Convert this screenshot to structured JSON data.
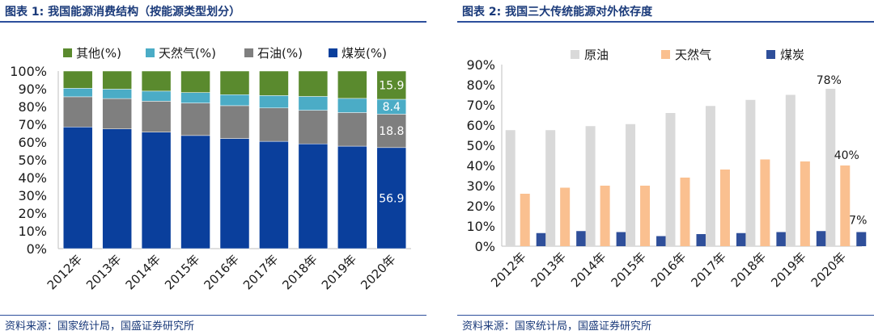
{
  "chart_data": [
    {
      "type": "bar",
      "stacked": true,
      "title": "图表 1:  我国能源消费结构（按能源类型划分）",
      "source": "资料来源：国家统计局，国盛证券研究所",
      "categories": [
        "2012年",
        "2013年",
        "2014年",
        "2015年",
        "2016年",
        "2017年",
        "2018年",
        "2019年",
        "2020年"
      ],
      "series": [
        {
          "name": "煤炭(%)",
          "color": "#0a3f9c",
          "values": [
            68.5,
            67.4,
            65.6,
            63.7,
            62.0,
            60.4,
            59.0,
            57.7,
            56.9
          ]
        },
        {
          "name": "石油(%)",
          "color": "#7f7f7f",
          "values": [
            17.0,
            17.1,
            17.4,
            18.3,
            18.5,
            18.8,
            18.9,
            18.9,
            18.8
          ]
        },
        {
          "name": "天然气(%)",
          "color": "#4bacc6",
          "values": [
            4.8,
            5.3,
            5.7,
            5.9,
            6.2,
            7.0,
            7.8,
            8.0,
            8.4
          ]
        },
        {
          "name": "其他(%)",
          "color": "#5a8a2e",
          "values": [
            9.7,
            10.2,
            11.3,
            12.1,
            13.3,
            13.8,
            14.3,
            15.4,
            15.9
          ]
        }
      ],
      "legend_order": [
        "其他(%)",
        "天然气(%)",
        "石油(%)",
        "煤炭(%)"
      ],
      "labels": {
        "other": "15.9",
        "gas": "8.4",
        "oil": "18.8",
        "coal": "56.9"
      },
      "ylim": [
        0,
        100
      ],
      "yticks": [
        "0%",
        "10%",
        "20%",
        "30%",
        "40%",
        "50%",
        "60%",
        "70%",
        "80%",
        "90%",
        "100%"
      ],
      "legend_position": "top"
    },
    {
      "type": "bar",
      "stacked": false,
      "title": "图表 2:  我国三大传统能源对外依存度",
      "source": "资料来源：国家统计局，国盛证券研究所",
      "categories": [
        "2012年",
        "2013年",
        "2014年",
        "2015年",
        "2016年",
        "2017年",
        "2018年",
        "2019年",
        "2020年"
      ],
      "series": [
        {
          "name": "原油",
          "color": "#d9d9d9",
          "values": [
            57.5,
            57.5,
            59.5,
            60.5,
            66,
            69.5,
            72.5,
            75,
            78
          ]
        },
        {
          "name": "天然气",
          "color": "#fac090",
          "values": [
            26,
            29,
            30,
            30,
            34,
            38,
            43,
            42,
            40
          ]
        },
        {
          "name": "煤炭",
          "color": "#2f4f9a",
          "values": [
            6.5,
            7.5,
            7,
            5,
            6,
            6.5,
            7,
            7.5,
            7
          ]
        }
      ],
      "labels": {
        "oil": "78%",
        "gas": "40%",
        "coal": "7%"
      },
      "ylim": [
        0,
        90
      ],
      "yticks": [
        "0%",
        "10%",
        "20%",
        "30%",
        "40%",
        "50%",
        "60%",
        "70%",
        "80%",
        "90%"
      ],
      "legend_position": "top"
    }
  ]
}
